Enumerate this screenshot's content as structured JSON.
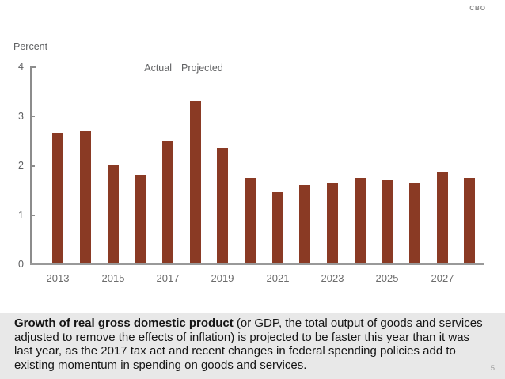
{
  "header": {
    "logo": "CBO"
  },
  "chart": {
    "y_axis_title": "Percent",
    "annotation_left": "Actual",
    "annotation_right": "Projected"
  },
  "chart_data": {
    "type": "bar",
    "title": "",
    "xlabel": "",
    "ylabel": "Percent",
    "categories": [
      2013,
      2014,
      2015,
      2016,
      2017,
      2018,
      2019,
      2020,
      2021,
      2022,
      2023,
      2024,
      2025,
      2026,
      2027,
      2028
    ],
    "values": [
      2.65,
      2.7,
      2.0,
      1.8,
      2.5,
      3.3,
      2.35,
      1.75,
      1.45,
      1.6,
      1.65,
      1.75,
      1.7,
      1.65,
      1.85,
      1.75
    ],
    "y_ticks": [
      0,
      1,
      2,
      3,
      4
    ],
    "ylim": [
      0,
      4
    ],
    "x_tick_labels": [
      "2013",
      "2015",
      "2017",
      "2019",
      "2021",
      "2023",
      "2025",
      "2027"
    ],
    "divider_after_category": 2017,
    "divider_labels": [
      "Actual",
      "Projected"
    ],
    "bar_color": "#8a3a24",
    "grid": false,
    "legend": "none"
  },
  "caption": {
    "bold": "Growth of real gross domestic product",
    "rest": " (or GDP, the total output of goods and services adjusted to remove the effects of inflation) is projected to be faster this year than it was last year, as the 2017 tax act and recent changes in federal spending policies add to existing momentum in spending on goods and services."
  },
  "footer": {
    "page_number": "5"
  }
}
